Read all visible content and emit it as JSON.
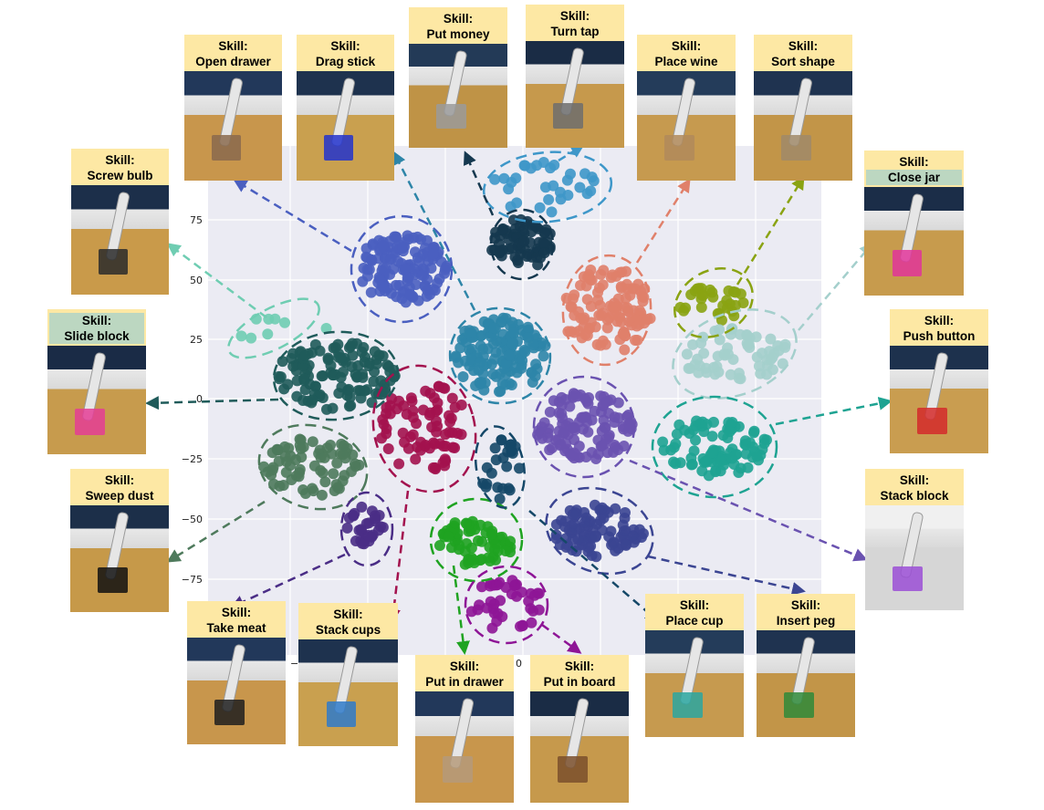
{
  "axis": {
    "yticks": [
      "75",
      "50",
      "25",
      "0",
      "−25",
      "−50",
      "−75"
    ],
    "xticks": [
      "−7",
      "0"
    ]
  },
  "colors": {
    "card_header": "#fde8a4",
    "highlight": "#bcd7c1",
    "plot_bg": "#ebebf3"
  },
  "cards": [
    {
      "id": "screw-bulb",
      "line1": "Skill:",
      "line2": "Screw bulb",
      "color": "#6fcdb2"
    },
    {
      "id": "open-drawer",
      "line1": "Skill:",
      "line2": "Open drawer",
      "color": "#4a5fc0"
    },
    {
      "id": "drag-stick",
      "line1": "Skill:",
      "line2": "Drag stick",
      "color": "#2e85a8"
    },
    {
      "id": "put-money",
      "line1": "Skill:",
      "line2": "Put money",
      "color": "#15384f"
    },
    {
      "id": "turn-tap",
      "line1": "Skill:",
      "line2": "Turn tap",
      "color": "#3e97c9"
    },
    {
      "id": "place-wine",
      "line1": "Skill:",
      "line2": "Place wine",
      "color": "#e0806a"
    },
    {
      "id": "sort-shape",
      "line1": "Skill:",
      "line2": "Sort shape",
      "color": "#8aa312"
    },
    {
      "id": "close-jar",
      "line1": "Skill:",
      "line2": "Close jar",
      "color": "#a4cfcc",
      "highlight": true
    },
    {
      "id": "slide-block",
      "line1": "Skill:",
      "line2": "Slide block",
      "color": "#1f5b5a",
      "highlight": true
    },
    {
      "id": "push-button",
      "line1": "Skill:",
      "line2": "Push button",
      "color": "#1ea392"
    },
    {
      "id": "sweep-dust",
      "line1": "Skill:",
      "line2": "Sweep dust",
      "color": "#4e7a5c"
    },
    {
      "id": "stack-block",
      "line1": "Skill:",
      "line2": "Stack block",
      "color": "#6a52b0"
    },
    {
      "id": "take-meat",
      "line1": "Skill:",
      "line2": "Take meat",
      "color": "#4a2d86"
    },
    {
      "id": "stack-cups",
      "line1": "Skill:",
      "line2": "Stack cups",
      "color": "#a3124e"
    },
    {
      "id": "put-in-drawer",
      "line1": "Skill:",
      "line2": "Put in drawer",
      "color": "#1fa321"
    },
    {
      "id": "put-in-board",
      "line1": "Skill:",
      "line2": "Put in board",
      "color": "#8e1596"
    },
    {
      "id": "place-cup",
      "line1": "Skill:",
      "line2": "Place cup",
      "color": "#154868"
    },
    {
      "id": "insert-peg",
      "line1": "Skill:",
      "line2": "Insert peg",
      "color": "#3b4592"
    }
  ]
}
